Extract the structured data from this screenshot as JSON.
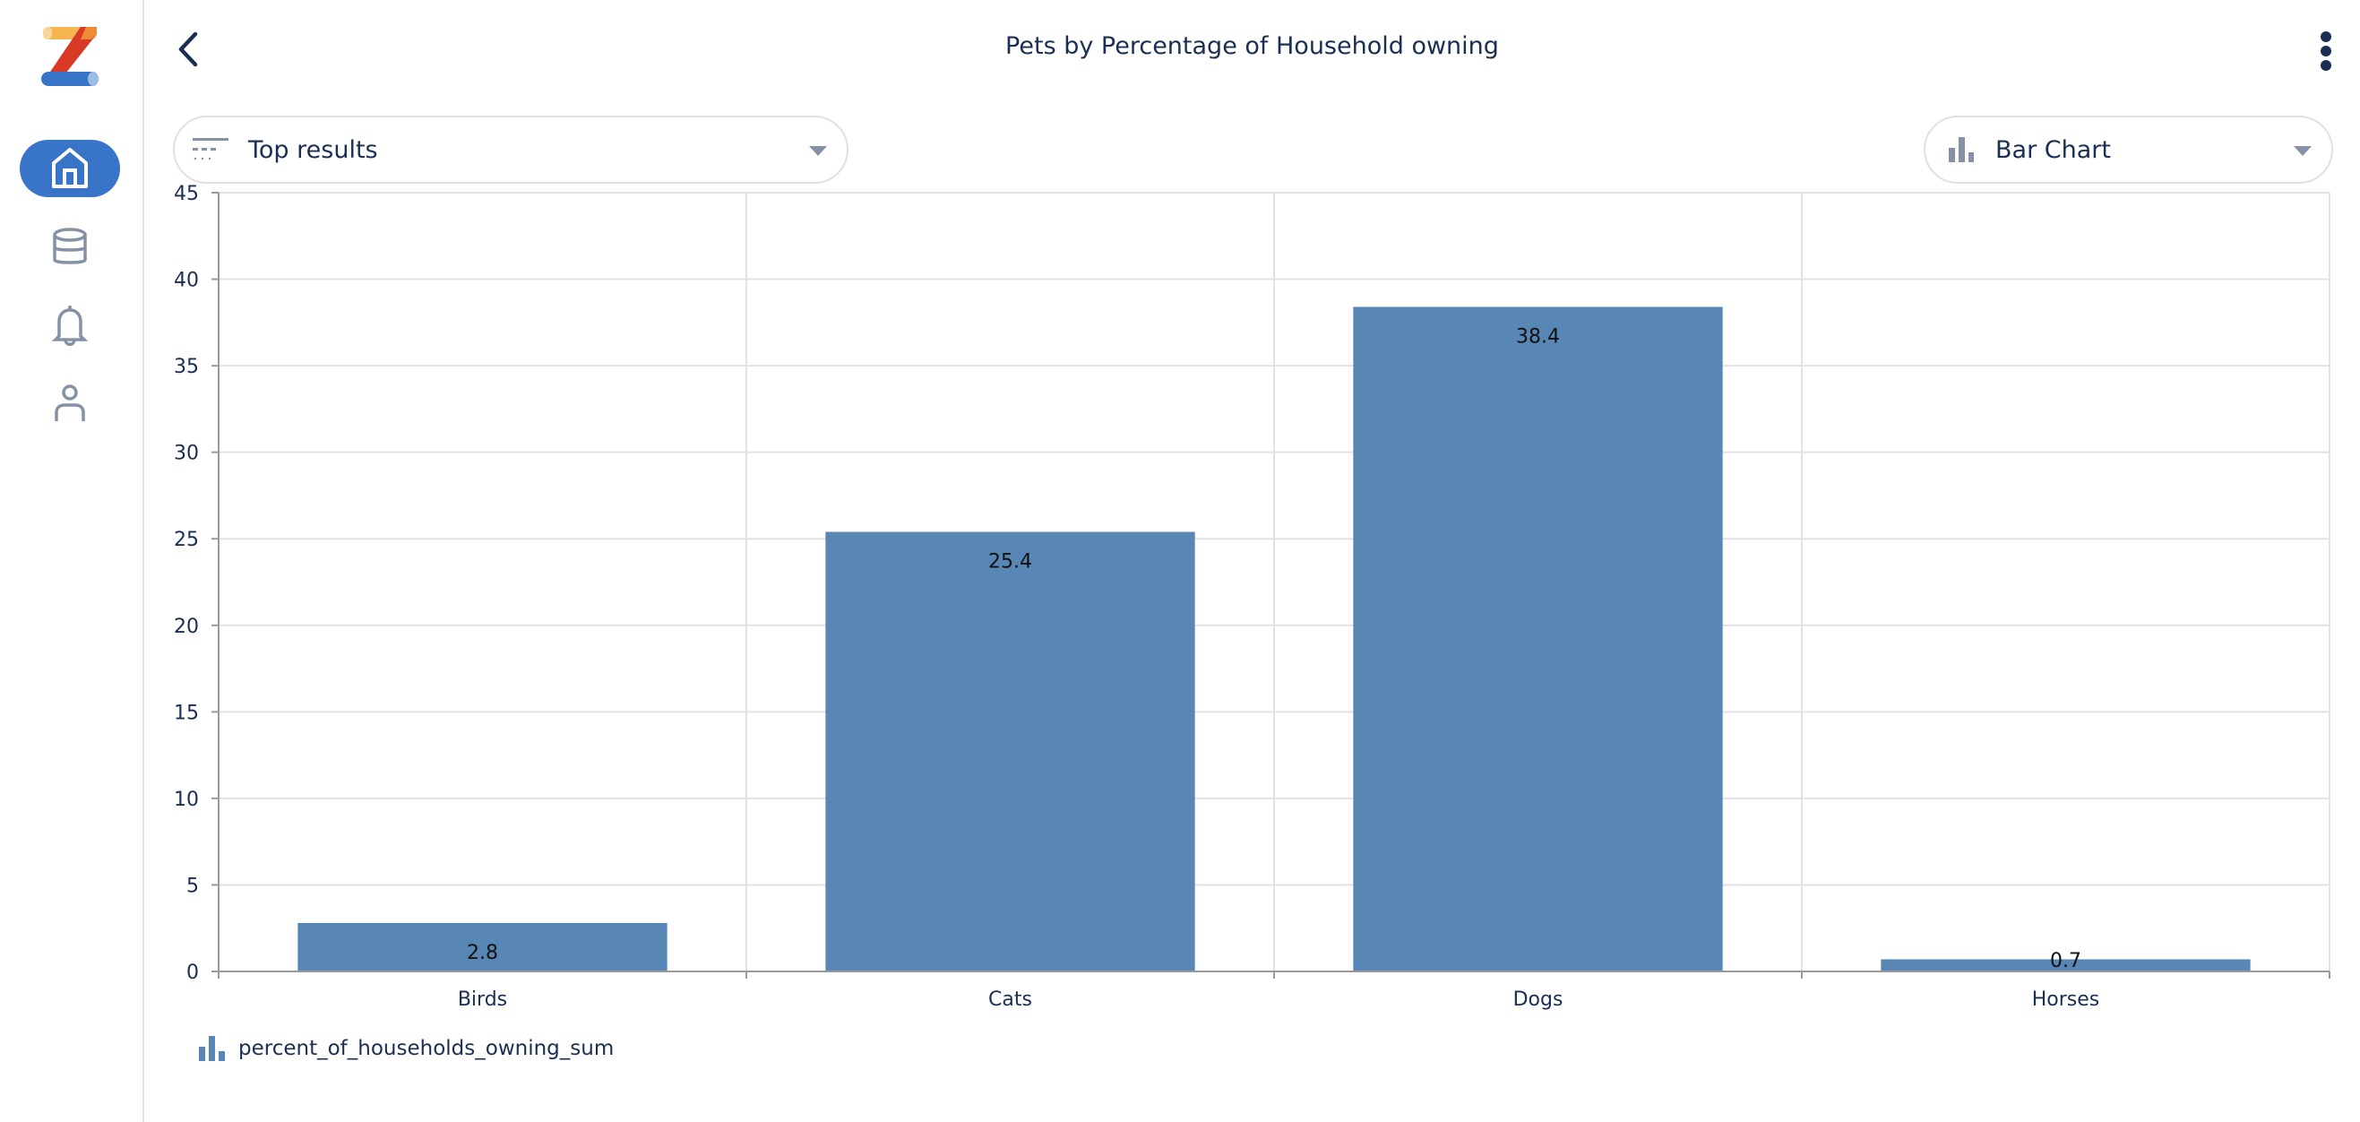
{
  "header": {
    "title": "Pets by Percentage of Household owning"
  },
  "sidebar": {
    "items": [
      {
        "name": "home",
        "active": true
      },
      {
        "name": "database"
      },
      {
        "name": "notifications"
      },
      {
        "name": "profile"
      }
    ]
  },
  "controls": {
    "result_filter": {
      "label": "Top results",
      "icon": "filter-lines-icon"
    },
    "chart_type": {
      "label": "Bar Chart",
      "icon": "bar-chart-icon"
    }
  },
  "colors": {
    "bar": "#5886b5",
    "accent": "#3874c8",
    "text": "#1b2f52"
  },
  "chart_data": {
    "type": "bar",
    "title": "",
    "xlabel": "",
    "ylabel": "",
    "categories": [
      "Birds",
      "Cats",
      "Dogs",
      "Horses"
    ],
    "series": [
      {
        "name": "percent_of_households_owning_sum",
        "values": [
          2.8,
          25.4,
          38.4,
          0.7
        ]
      }
    ],
    "data_labels": [
      "2.8",
      "25.4",
      "38.4",
      "0.7"
    ],
    "ylim": [
      0,
      45
    ],
    "yticks": [
      0,
      5,
      10,
      15,
      20,
      25,
      30,
      35,
      40,
      45
    ],
    "grid": true,
    "legend": "bottom-left"
  }
}
